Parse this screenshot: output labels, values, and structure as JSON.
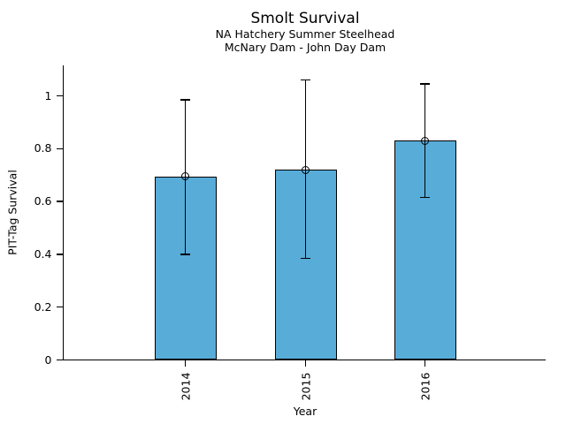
{
  "chart_data": {
    "type": "bar",
    "title": "Smolt Survival",
    "subtitles": [
      "NA Hatchery Summer Steelhead",
      "McNary Dam - John Day Dam"
    ],
    "xlabel": "Year",
    "ylabel": "PIT-Tag Survival",
    "categories": [
      "2014",
      "2015",
      "2016"
    ],
    "values": [
      0.695,
      0.72,
      0.83
    ],
    "error_low": [
      0.4,
      0.385,
      0.615
    ],
    "error_high": [
      0.985,
      1.06,
      1.045
    ],
    "y_ticks": [
      0,
      0.2,
      0.4,
      0.6,
      0.8,
      1
    ],
    "y_tick_labels": [
      "0",
      "0.2",
      "0.4",
      "0.6",
      "0.8",
      "1"
    ],
    "ylim": [
      0,
      1.115
    ],
    "grid": false,
    "legend": null,
    "marker": "open-circle",
    "colors": {
      "bar_fill": "#58ACD8",
      "bar_edge": "#000000",
      "error_bar": "#000000",
      "axis": "#000000",
      "text": "#000000",
      "background": "#FFFFFF"
    }
  }
}
